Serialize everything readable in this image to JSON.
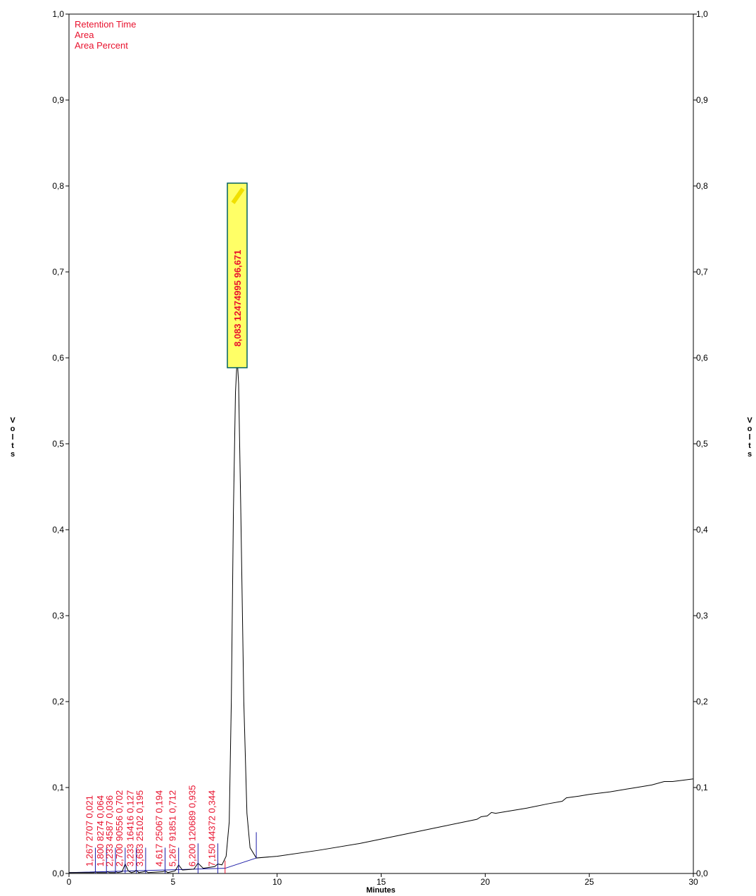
{
  "chart_data": {
    "type": "line",
    "xlabel": "Minutes",
    "ylabel_left": "Volts",
    "ylabel_right": "Volts",
    "xlim": [
      0,
      30
    ],
    "ylim": [
      0,
      1.0
    ],
    "x_ticks": [
      "0",
      "5",
      "10",
      "15",
      "20",
      "25",
      "30"
    ],
    "x_tick_values": [
      0,
      5,
      10,
      15,
      20,
      25,
      30
    ],
    "y_ticks": [
      "0,0",
      "0,1",
      "0,2",
      "0,3",
      "0,4",
      "0,5",
      "0,6",
      "0,7",
      "0,8",
      "0,9",
      "1,0"
    ],
    "y_tick_values": [
      0,
      0.1,
      0.2,
      0.3,
      0.4,
      0.5,
      0.6,
      0.7,
      0.8,
      0.9,
      1.0
    ],
    "grid": false,
    "legend": {
      "placement": "top-left",
      "entries": [
        "Retention Time",
        "Area",
        "Area Percent"
      ],
      "color": "#e8112d"
    },
    "trace_color": "#000000",
    "baseline_color": "#1a1aa6",
    "label_color": "#e8112d",
    "highlight_fill": "#ffff66",
    "highlight_border": "#006060",
    "series": [
      {
        "values": [
          [
            0,
            0.001
          ],
          [
            1.2,
            0.001
          ],
          [
            1.27,
            0.002
          ],
          [
            1.35,
            0.001
          ],
          [
            1.8,
            0.001
          ],
          [
            1.85,
            0.002
          ],
          [
            1.95,
            0.001
          ],
          [
            2.2,
            0.001
          ],
          [
            2.25,
            0.002
          ],
          [
            2.35,
            0.001
          ],
          [
            2.55,
            0.002
          ],
          [
            2.7,
            0.011
          ],
          [
            2.85,
            0.003
          ],
          [
            3.0,
            0.001
          ],
          [
            3.15,
            0.002
          ],
          [
            3.23,
            0.004
          ],
          [
            3.35,
            0.001
          ],
          [
            3.6,
            0.002
          ],
          [
            3.68,
            0.003
          ],
          [
            3.8,
            0.001
          ],
          [
            4.5,
            0.002
          ],
          [
            4.62,
            0.003
          ],
          [
            4.75,
            0.001
          ],
          [
            5.1,
            0.003
          ],
          [
            5.27,
            0.01
          ],
          [
            5.45,
            0.004
          ],
          [
            6.0,
            0.005
          ],
          [
            6.2,
            0.012
          ],
          [
            6.45,
            0.006
          ],
          [
            7.0,
            0.008
          ],
          [
            7.15,
            0.011
          ],
          [
            7.35,
            0.01
          ],
          [
            7.55,
            0.02
          ],
          [
            7.7,
            0.06
          ],
          [
            7.8,
            0.2
          ],
          [
            7.9,
            0.42
          ],
          [
            8.0,
            0.56
          ],
          [
            8.083,
            0.6
          ],
          [
            8.15,
            0.57
          ],
          [
            8.25,
            0.43
          ],
          [
            8.4,
            0.2
          ],
          [
            8.55,
            0.07
          ],
          [
            8.7,
            0.03
          ],
          [
            9.0,
            0.018
          ],
          [
            10,
            0.02
          ],
          [
            12,
            0.027
          ],
          [
            14,
            0.035
          ],
          [
            16,
            0.045
          ],
          [
            18,
            0.055
          ],
          [
            19.6,
            0.063
          ],
          [
            19.8,
            0.066
          ],
          [
            20.1,
            0.067
          ],
          [
            20.3,
            0.071
          ],
          [
            20.5,
            0.07
          ],
          [
            21,
            0.072
          ],
          [
            22,
            0.076
          ],
          [
            23,
            0.081
          ],
          [
            23.7,
            0.084
          ],
          [
            23.9,
            0.088
          ],
          [
            24.5,
            0.09
          ],
          [
            25,
            0.092
          ],
          [
            26,
            0.095
          ],
          [
            27,
            0.099
          ],
          [
            28,
            0.103
          ],
          [
            28.6,
            0.107
          ],
          [
            29,
            0.107
          ],
          [
            30,
            0.11
          ]
        ]
      }
    ],
    "baseline": [
      [
        0,
        0.001
      ],
      [
        7.5,
        0.006
      ],
      [
        9.0,
        0.018
      ]
    ],
    "peak_markers": [
      {
        "x": 1.267,
        "top": 0.03,
        "rt": "1,267",
        "area": "2707",
        "pct": "0,021"
      },
      {
        "x": 1.8,
        "top": 0.03,
        "rt": "1,800",
        "area": "8274",
        "pct": "0,064"
      },
      {
        "x": 2.233,
        "top": 0.03,
        "rt": "2,233",
        "area": "4587",
        "pct": "0,036"
      },
      {
        "x": 2.7,
        "top": 0.03,
        "rt": "2,700",
        "area": "90556",
        "pct": "0,702"
      },
      {
        "x": 3.233,
        "top": 0.03,
        "rt": "3,233",
        "area": "16416",
        "pct": "0,127"
      },
      {
        "x": 3.683,
        "top": 0.03,
        "rt": "3,683",
        "area": "25102",
        "pct": "0,195"
      },
      {
        "x": 4.617,
        "top": 0.03,
        "rt": "4,617",
        "area": "25067",
        "pct": "0,194"
      },
      {
        "x": 5.267,
        "top": 0.03,
        "rt": "5,267",
        "area": "91851",
        "pct": "0,712"
      },
      {
        "x": 6.2,
        "top": 0.035,
        "rt": "6,200",
        "area": "120689",
        "pct": "0,935"
      },
      {
        "x": 7.15,
        "top": 0.035,
        "rt": "7,150",
        "area": "44372",
        "pct": "0,344"
      }
    ],
    "main_peak": {
      "x": 8.083,
      "rt": "8,083",
      "area": "12474995",
      "pct": "96,671"
    },
    "extra_markers": [
      {
        "x": 7.5,
        "bottom": 0.0,
        "top": 0.015,
        "color": "#e8112d"
      },
      {
        "x": 9.0,
        "bottom": 0.018,
        "top": 0.048,
        "color": "#1a1aa6"
      }
    ]
  }
}
